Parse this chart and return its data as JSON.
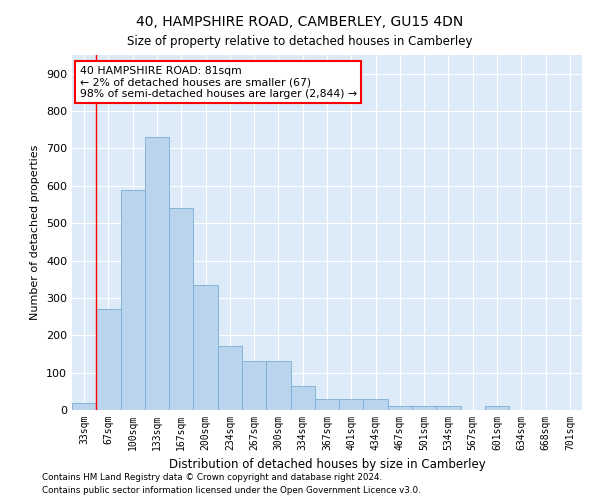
{
  "title": "40, HAMPSHIRE ROAD, CAMBERLEY, GU15 4DN",
  "subtitle": "Size of property relative to detached houses in Camberley",
  "xlabel": "Distribution of detached houses by size in Camberley",
  "ylabel": "Number of detached properties",
  "bar_color": "#bad4ee",
  "bar_edge_color": "#7aadd4",
  "background_color": "#ddeaf8",
  "grid_color": "white",
  "categories": [
    "33sqm",
    "67sqm",
    "100sqm",
    "133sqm",
    "167sqm",
    "200sqm",
    "234sqm",
    "267sqm",
    "300sqm",
    "334sqm",
    "367sqm",
    "401sqm",
    "434sqm",
    "467sqm",
    "501sqm",
    "534sqm",
    "567sqm",
    "601sqm",
    "634sqm",
    "668sqm",
    "701sqm"
  ],
  "values": [
    20,
    270,
    590,
    730,
    540,
    335,
    170,
    130,
    130,
    65,
    30,
    30,
    30,
    10,
    10,
    10,
    0,
    10,
    0,
    0,
    0
  ],
  "ylim": [
    0,
    950
  ],
  "yticks": [
    0,
    100,
    200,
    300,
    400,
    500,
    600,
    700,
    800,
    900
  ],
  "property_line_x": 0.5,
  "annotation_text": "40 HAMPSHIRE ROAD: 81sqm\n← 2% of detached houses are smaller (67)\n98% of semi-detached houses are larger (2,844) →",
  "annotation_box_color": "white",
  "annotation_box_edge_color": "red",
  "footnote1": "Contains HM Land Registry data © Crown copyright and database right 2024.",
  "footnote2": "Contains public sector information licensed under the Open Government Licence v3.0."
}
